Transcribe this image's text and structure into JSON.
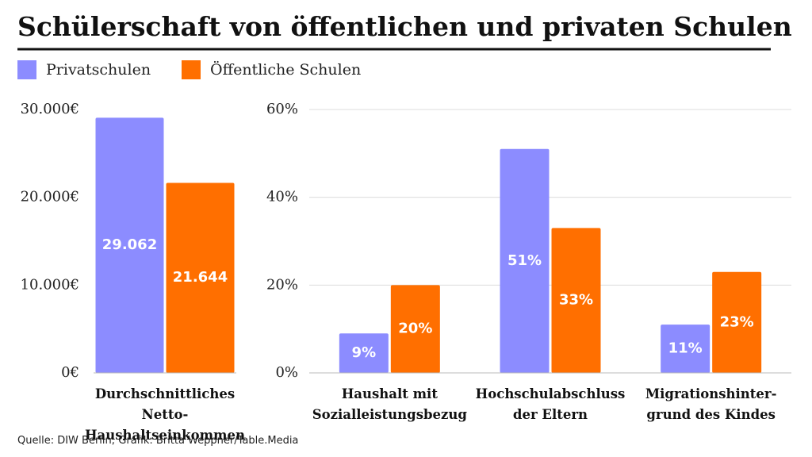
{
  "header": {
    "title": "Schülerschaft von öffentlichen und privaten Schulen"
  },
  "source": "Quelle: DIW Berlin; Grafik: Britta Weppner/Table.Media",
  "chart_data": [
    {
      "type": "bar",
      "categories": [
        "Durchschnittliches Netto-\nHaushaltseinkommen"
      ],
      "series": [
        {
          "name": "Privatschulen",
          "color": "#8c8cff",
          "values": [
            29062
          ],
          "value_labels": [
            "29.062"
          ]
        },
        {
          "name": "Öffentliche Schulen",
          "color": "#ff6f00",
          "values": [
            21644
          ],
          "value_labels": [
            "21.644"
          ]
        }
      ],
      "ylim": [
        0,
        30000
      ],
      "yticks": [
        {
          "value": 0,
          "label": "0€"
        },
        {
          "value": 10000,
          "label": "10.000€"
        },
        {
          "value": 20000,
          "label": "20.000€"
        },
        {
          "value": 30000,
          "label": "30.000€"
        }
      ],
      "grid": false
    },
    {
      "type": "bar",
      "categories": [
        "Haushalt mit\nSozialleistungsbezug",
        "Hochschulabschluss\nder Eltern",
        "Migrationshinter-\ngrund des Kindes"
      ],
      "series": [
        {
          "name": "Privatschulen",
          "color": "#8c8cff",
          "values": [
            9,
            51,
            11
          ],
          "value_labels": [
            "9%",
            "51%",
            "11%"
          ]
        },
        {
          "name": "Öffentliche Schulen",
          "color": "#ff6f00",
          "values": [
            20,
            33,
            23
          ],
          "value_labels": [
            "20%",
            "33%",
            "23%"
          ]
        }
      ],
      "ylim": [
        0,
        60
      ],
      "yticks": [
        {
          "value": 0,
          "label": "0%"
        },
        {
          "value": 20,
          "label": "20%"
        },
        {
          "value": 40,
          "label": "40%"
        },
        {
          "value": 60,
          "label": "60%"
        }
      ],
      "grid": true
    }
  ]
}
